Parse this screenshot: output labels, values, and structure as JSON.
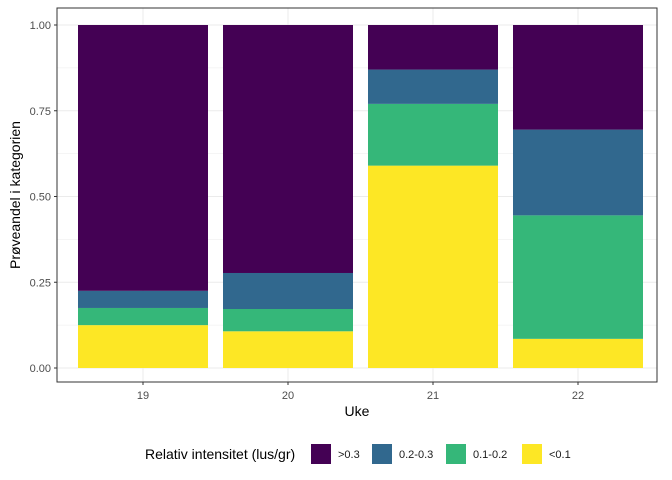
{
  "chart_data": {
    "type": "bar",
    "stacked": true,
    "title": "",
    "xlabel": "Uke",
    "ylabel": "Prøveandel i kategorien",
    "categories": [
      "19",
      "20",
      "21",
      "22"
    ],
    "ylim": [
      0,
      1
    ],
    "yticks": [
      "0.00",
      "0.25",
      "0.50",
      "0.75",
      "1.00"
    ],
    "grid": true,
    "legend_title": "Relativ intensitet (lus/gr)",
    "legend_position": "bottom",
    "series": [
      {
        "name": "<0.1",
        "color": "#FDE725",
        "values": [
          0.125,
          0.107,
          0.59,
          0.085
        ]
      },
      {
        "name": "0.1-0.2",
        "color": "#35B779",
        "values": [
          0.05,
          0.065,
          0.18,
          0.36
        ]
      },
      {
        "name": "0.2-0.3",
        "color": "#31688E",
        "values": [
          0.05,
          0.105,
          0.1,
          0.25
        ]
      },
      {
        "name": ">0.3",
        "color": "#440154",
        "values": [
          0.775,
          0.723,
          0.13,
          0.305
        ]
      }
    ],
    "legend_order": [
      ">0.3",
      "0.2-0.3",
      "0.1-0.2",
      "<0.1"
    ]
  }
}
